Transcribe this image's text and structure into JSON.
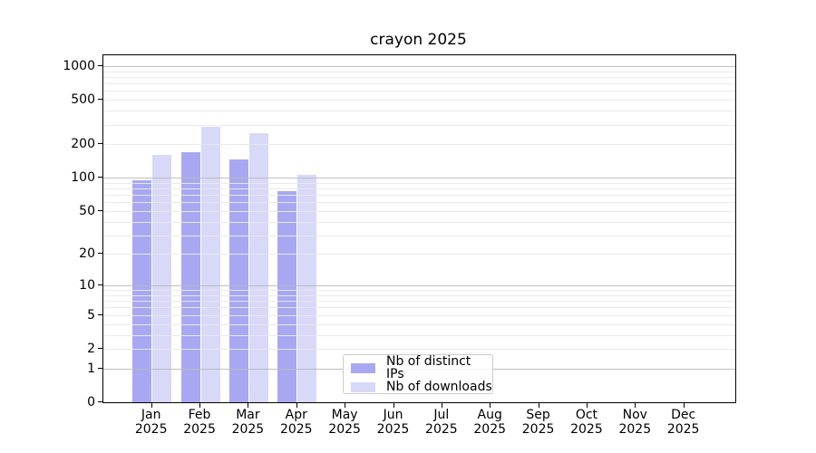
{
  "figure": {
    "background": "#ffffff"
  },
  "chart_data": {
    "type": "bar",
    "title": "crayon 2025",
    "categories": [
      "Jan 2025",
      "Feb 2025",
      "Mar 2025",
      "Apr 2025",
      "May 2025",
      "Jun 2025",
      "Jul 2025",
      "Aug 2025",
      "Sep 2025",
      "Oct 2025",
      "Nov 2025",
      "Dec 2025"
    ],
    "series": [
      {
        "name": "Nb of distinct IPs",
        "color": "#a8a8f2",
        "values": [
          94,
          170,
          146,
          76,
          0,
          0,
          0,
          0,
          0,
          0,
          0,
          0
        ]
      },
      {
        "name": "Nb of downloads",
        "color": "#d8d8f8",
        "values": [
          161,
          286,
          250,
          106,
          0,
          0,
          0,
          0,
          0,
          0,
          0,
          0
        ]
      }
    ],
    "xlabel": "",
    "ylabel": "",
    "yscale": "log1p",
    "ylim": [
      0,
      1250
    ],
    "yticks": [
      0,
      1,
      2,
      5,
      10,
      20,
      50,
      100,
      200,
      500,
      1000
    ],
    "grid": true,
    "legend_position": "lower center"
  },
  "colors": {
    "grid_major": "rgba(185,185,185,0.9)",
    "grid_minor": "rgba(233,233,233,0.95)",
    "spine": "#000000",
    "text": "#000000"
  }
}
